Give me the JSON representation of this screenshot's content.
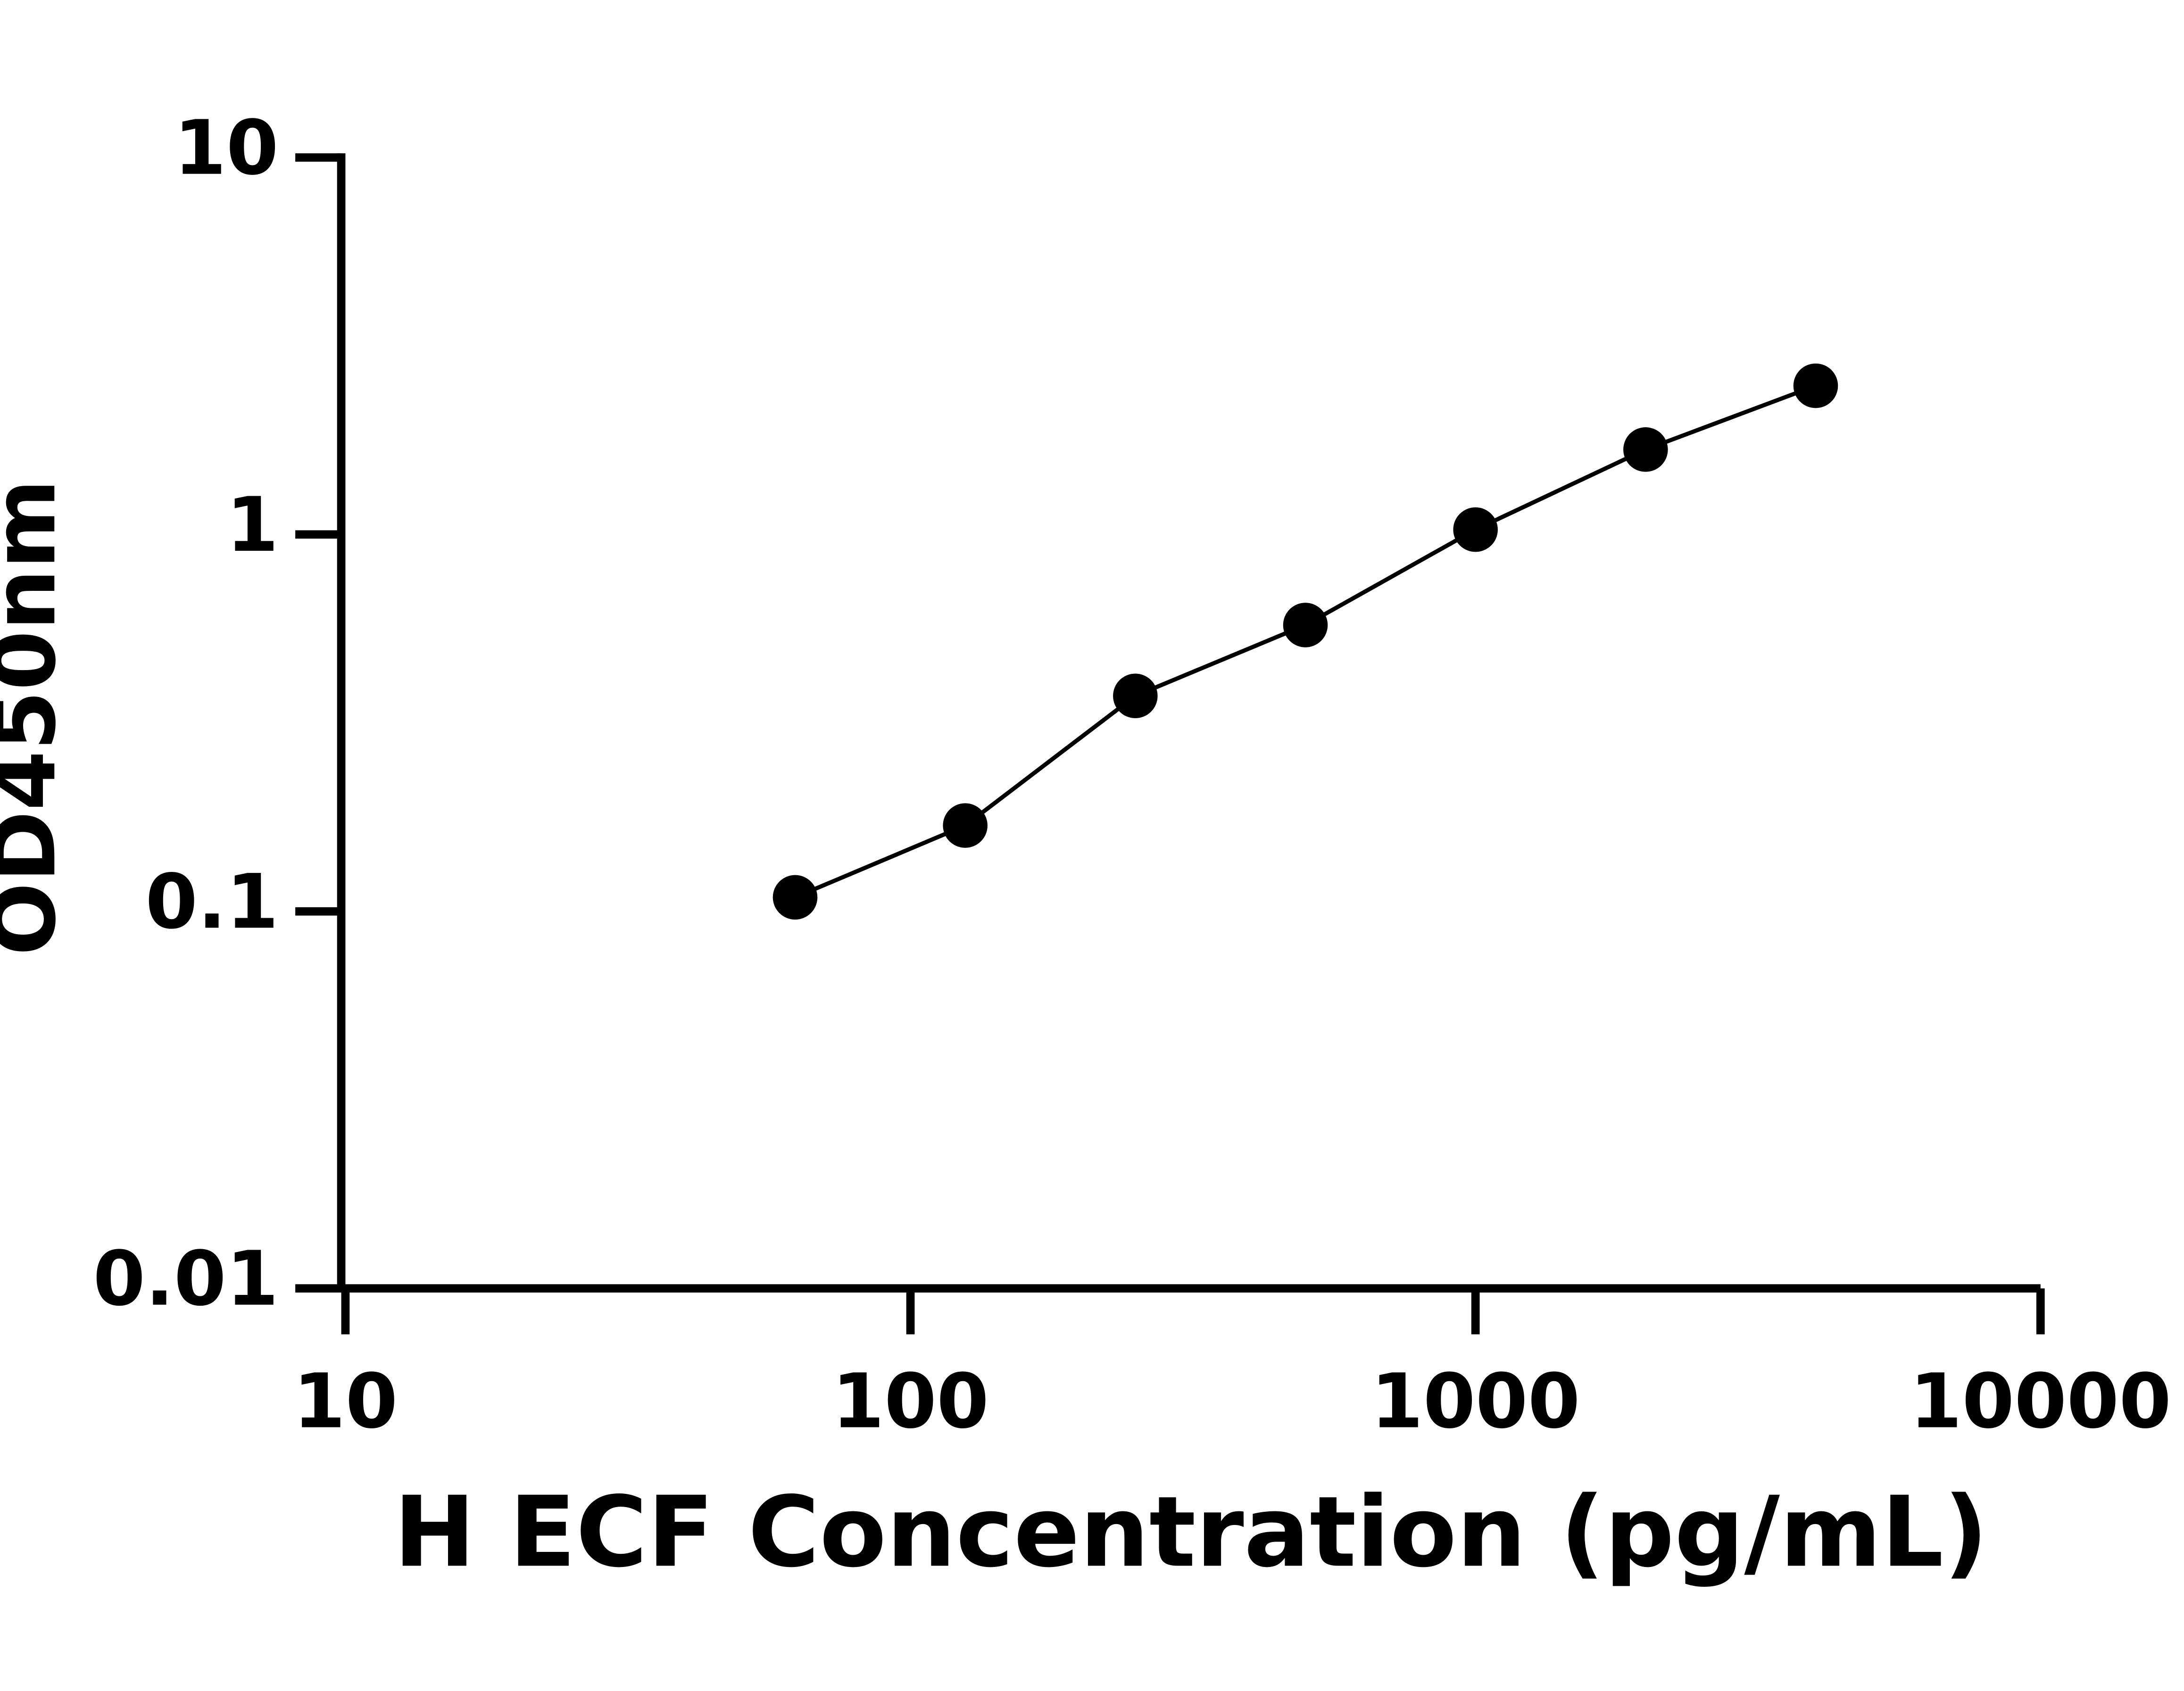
{
  "chart_data": {
    "type": "line",
    "x_label": "H ECF Concentration (pg/mL)",
    "y_label": "OD450nm",
    "x": [
      62.5,
      125,
      250,
      500,
      1000,
      2000,
      4000
    ],
    "series": [
      {
        "color": "#000000",
        "values": [
          0.109,
          0.169,
          0.373,
          0.575,
          1.03,
          1.68,
          2.48
        ]
      }
    ],
    "xscale": "log",
    "yscale": "log",
    "xlim": [
      10,
      10000
    ],
    "xticks": [
      10,
      100,
      1000,
      10000
    ],
    "ylim": [
      0.01,
      10
    ],
    "yticks": [
      0.01,
      0.1,
      1,
      10
    ]
  }
}
